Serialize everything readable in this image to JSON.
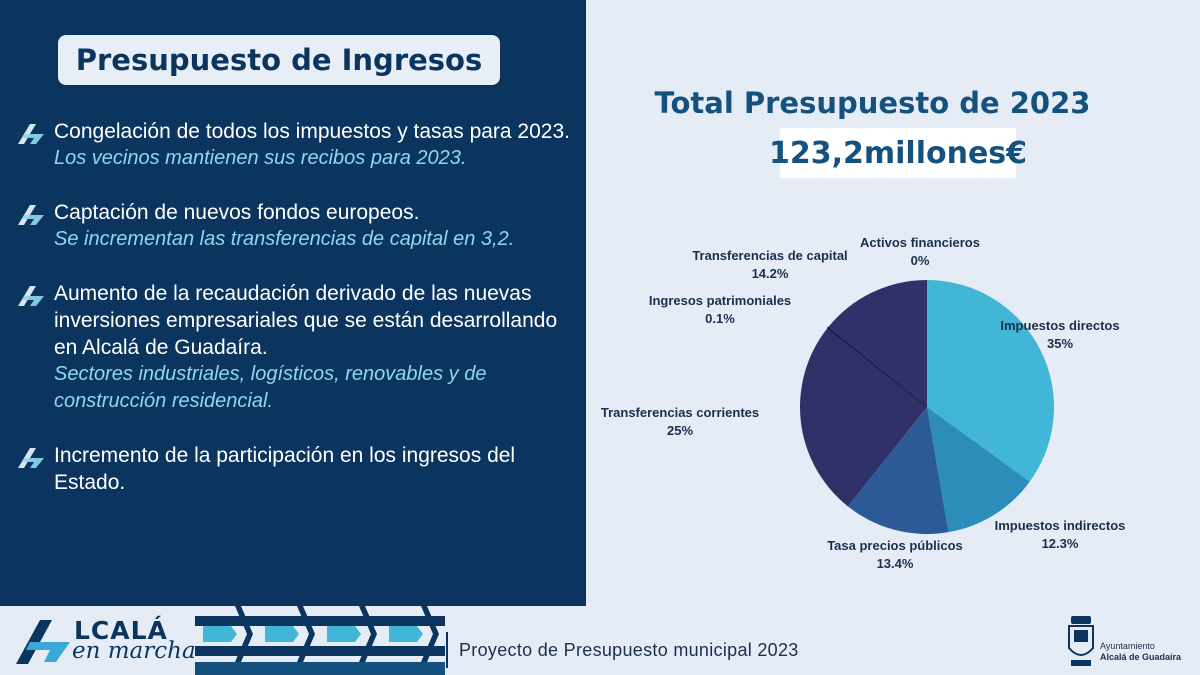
{
  "left": {
    "title": "Presupuesto de Ingresos",
    "bullets": [
      {
        "text": "Congelación de todos los impuestos y tasas para 2023.",
        "sub": "Los vecinos mantienen sus recibos para 2023."
      },
      {
        "text": "Captación de nuevos fondos europeos.",
        "sub": "Se incrementan las transferencias de capital en 3,2."
      },
      {
        "text": "Aumento de la recaudación derivado de las nuevas inversiones empresariales que se están desarrollando en Alcalá de Guadaíra.",
        "sub": "Sectores industriales, logísticos, renovables y de construcción residencial."
      },
      {
        "text": "Incremento de la participación en los ingresos del Estado.",
        "sub": ""
      }
    ]
  },
  "right": {
    "title": "Total Presupuesto de 2023",
    "amount": "123,2millones€"
  },
  "chart_data": {
    "type": "pie",
    "title": "",
    "slices": [
      {
        "label": "Impuestos directos",
        "value": 35,
        "display": "35%",
        "color": "#41b6d6"
      },
      {
        "label": "Impuestos indirectos",
        "value": 12.3,
        "display": "12.3%",
        "color": "#2c8dbb"
      },
      {
        "label": "Tasa precios públicos",
        "value": 13.4,
        "display": "13.4%",
        "color": "#2b5a96"
      },
      {
        "label": "Transferencias corrientes",
        "value": 25,
        "display": "25%",
        "color": "#2e3067"
      },
      {
        "label": "Ingresos patrimoniales",
        "value": 0.1,
        "display": "0.1%",
        "color": "#1f1f46"
      },
      {
        "label": "Transferencias de capital",
        "value": 14.2,
        "display": "14.2%",
        "color": "#30306a"
      },
      {
        "label": "Activos financieros",
        "value": 0,
        "display": "0%",
        "color": "#30306a"
      }
    ]
  },
  "footer": {
    "logo_main": "LCALÁ",
    "logo_sub": "en marcha",
    "project": "Proyecto de Presupuesto municipal 2023",
    "ayto_small": "Ayuntamiento",
    "ayto_name": "Alcalá de Guadaíra"
  },
  "colors": {
    "panel": "#0b355e",
    "accent": "#8fd8ee",
    "background": "#e6ecf5"
  }
}
